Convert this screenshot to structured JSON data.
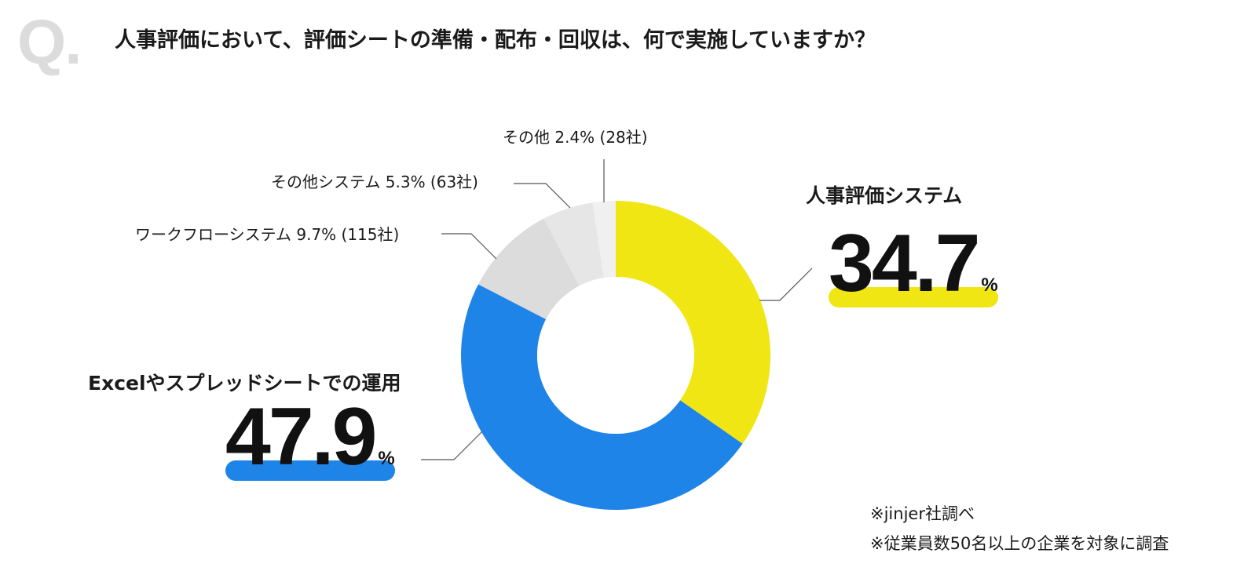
{
  "header": {
    "q_mark": "Q.",
    "question": "人事評価において、評価シートの準備・配布・回収は、何で実施していますか？"
  },
  "colors": {
    "hr_system": "#efe614",
    "excel": "#1e84e8",
    "workflow": "#dcdcdc",
    "other_system": "#e6e6e6",
    "other": "#f0f0f0",
    "leader": "#555555"
  },
  "chart_data": {
    "type": "pie",
    "donut": true,
    "series": [
      {
        "name": "人事評価システム",
        "value": 34.7,
        "count": null,
        "label": "人事評価システム",
        "pct_text": "34.7",
        "unit": "%"
      },
      {
        "name": "Excelやスプレッドシートでの運用",
        "value": 47.9,
        "count": null,
        "label": "Excelやスプレッドシートでの運用",
        "pct_text": "47.9",
        "unit": "%"
      },
      {
        "name": "ワークフローシステム",
        "value": 9.7,
        "count": 115,
        "label": "ワークフローシステム 9.7% (115社)"
      },
      {
        "name": "その他システム",
        "value": 5.3,
        "count": 63,
        "label": "その他システム 5.3% (63社)"
      },
      {
        "name": "その他",
        "value": 2.4,
        "count": 28,
        "label": "その他 2.4% (28社)"
      }
    ]
  },
  "notes": {
    "source": "※jinjer社調べ",
    "scope": "※従業員数50名以上の企業を対象に調査"
  }
}
